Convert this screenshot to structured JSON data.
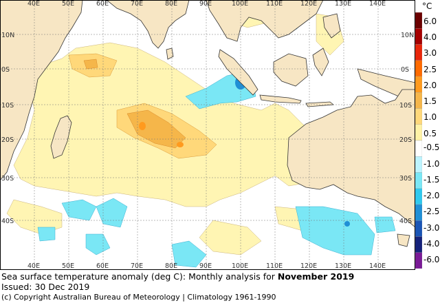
{
  "caption": {
    "title": "Sea surface temperature anomaly (deg C): Monthly analysis for ",
    "title_bold": "November 2019",
    "issued": "Issued: 30 Dec 2019",
    "copyright": "(c) Copyright Australian Bureau of Meteorology | Climatology 1961-1990"
  },
  "legend": {
    "unit": "°C",
    "labels": [
      "6.0",
      "4.0",
      "3.0",
      "2.5",
      "2.0",
      "1.5",
      "1.0",
      "0.5",
      "-0.5",
      "-1.0",
      "-1.5",
      "-2.0",
      "-2.5",
      "-3.0",
      "-4.0",
      "-6.0"
    ],
    "colors": [
      "#6b0000",
      "#a50000",
      "#e8260a",
      "#ff6a00",
      "#ff9a1e",
      "#f5b64a",
      "#ffd87a",
      "#fff2a6",
      "#ffffff",
      "#bdf4ff",
      "#7ae7f5",
      "#2fc9ee",
      "#1f8fd6",
      "#1a55b5",
      "#14217a",
      "#7a1a96"
    ]
  },
  "axes": {
    "lon_top": [
      "40E",
      "50E",
      "60E",
      "70E",
      "80E",
      "90E",
      "100E",
      "110E",
      "120E",
      "130E",
      "140E"
    ],
    "lon_bottom": [
      "40E",
      "50E",
      "60E",
      "70E",
      "80E",
      "90E",
      "100E",
      "110E",
      "120E",
      "130E",
      "140E"
    ],
    "lat_left": [
      "10N",
      "0S",
      "10S",
      "20S",
      "30S",
      "40S"
    ],
    "lat_right": [
      "10N",
      "0S",
      "10S",
      "20S",
      "30S",
      "40S"
    ]
  }
}
